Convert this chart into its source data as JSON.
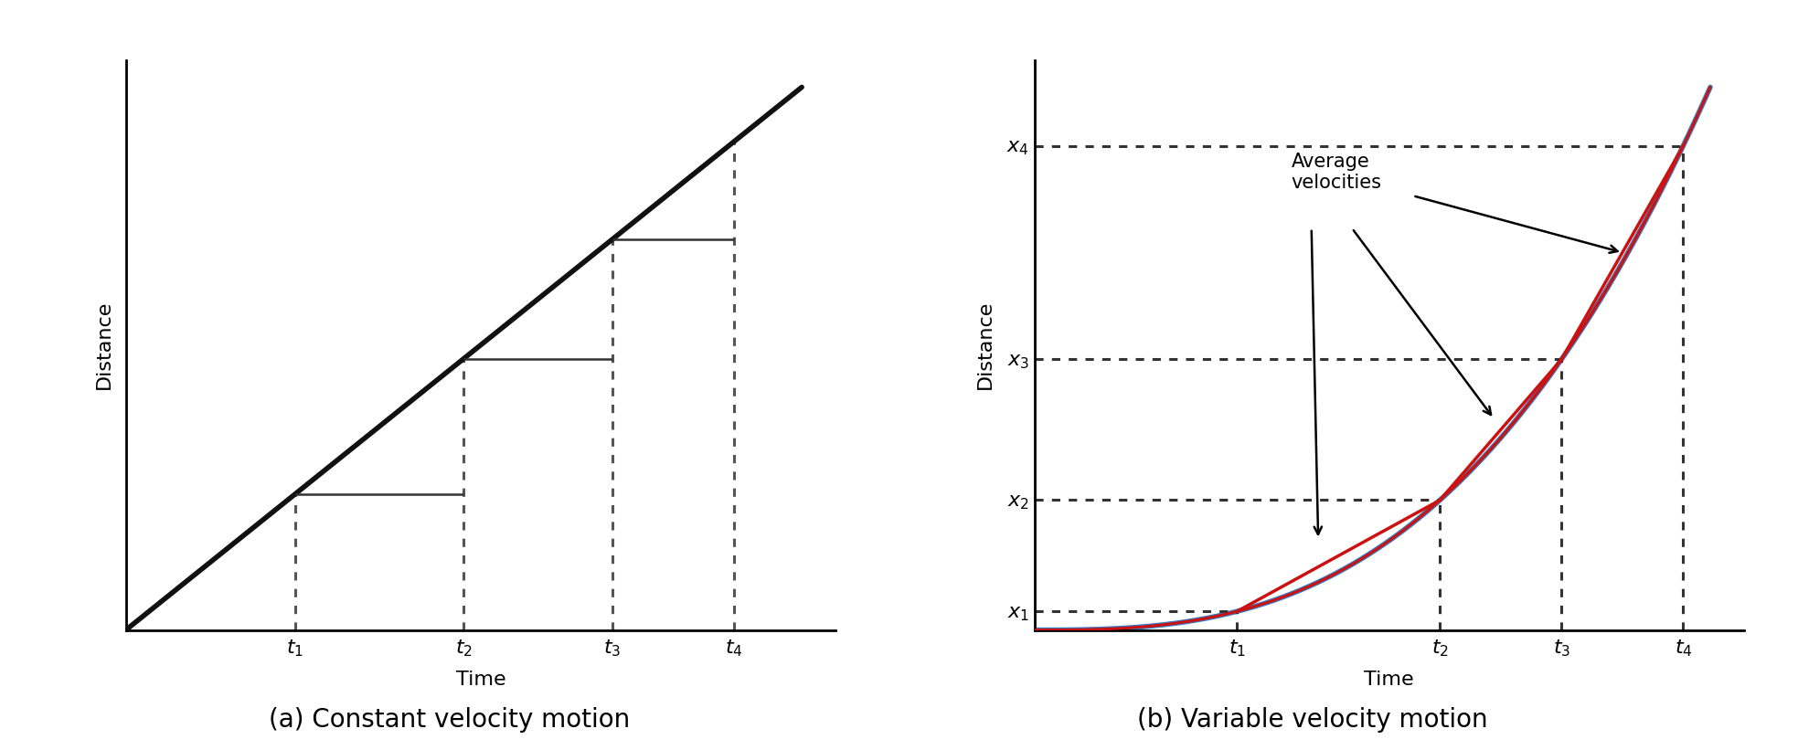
{
  "fig_width": 19.67,
  "fig_height": 8.21,
  "background_color": "#ffffff",
  "graph_a": {
    "title": "(a) Constant velocity motion",
    "xlabel": "Time",
    "ylabel": "Distance",
    "line_color": "#111111",
    "line_width": 4.0,
    "t_values": [
      0.25,
      0.5,
      0.72,
      0.9
    ],
    "step_color": "#333333",
    "step_lw": 1.8,
    "dotted_color": "#555555",
    "dotted_lw": 2.2,
    "t_labels": [
      "$t_1$",
      "$t_2$",
      "$t_3$",
      "$t_4$"
    ],
    "t_label_fontsize": 16
  },
  "graph_b": {
    "title": "(b) Variable velocity motion",
    "xlabel": "Time",
    "ylabel": "Distance",
    "curve_color_blue": "#3a7abf",
    "curve_color_red": "#cc1111",
    "curve_lw_blue": 4.0,
    "curve_lw_red": 2.2,
    "t_values": [
      0.3,
      0.6,
      0.78,
      0.96
    ],
    "t_labels": [
      "$t_1$",
      "$t_2$",
      "$t_3$",
      "$t_4$"
    ],
    "x_labels": [
      "$x_1$",
      "$x_2$",
      "$x_3$",
      "$x_4$"
    ],
    "dotted_color": "#333333",
    "dotted_lw": 2.2,
    "seg_color": "#cc1111",
    "seg_lw": 2.5,
    "annotation_text": "Average\nvelocities",
    "annotation_fontsize": 15,
    "t_label_fontsize": 16,
    "x_label_fontsize": 16,
    "curve_power": 2.8
  },
  "caption_fontsize": 20,
  "axis_label_fontsize": 16
}
